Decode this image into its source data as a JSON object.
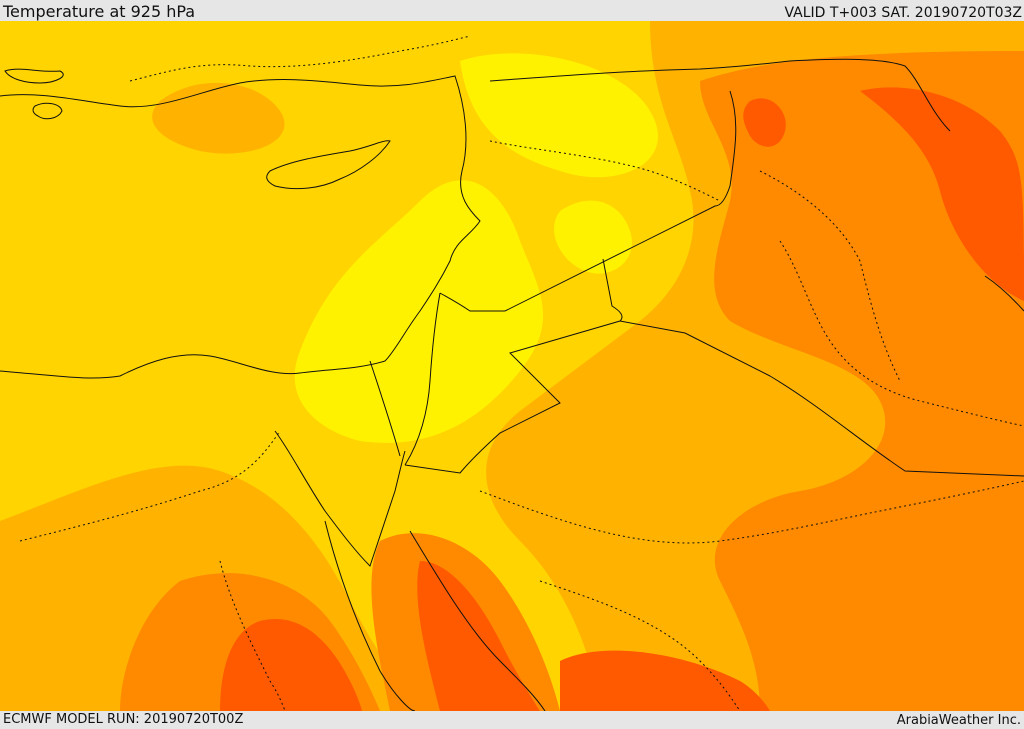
{
  "header": {
    "title": "Temperature at 925 hPa",
    "valid": "VALID T+003 SAT. 20190720T03Z"
  },
  "footer": {
    "model_run": "ECMWF MODEL RUN: 20190720T00Z",
    "credit": "ArabiaWeather Inc."
  },
  "map": {
    "field": "925 hPa temperature",
    "palette": {
      "warm": "#fff200",
      "warmer": "#ffd400",
      "hot": "#ffb300",
      "hotter": "#ff8a00",
      "hottest": "#ff5a00"
    }
  }
}
